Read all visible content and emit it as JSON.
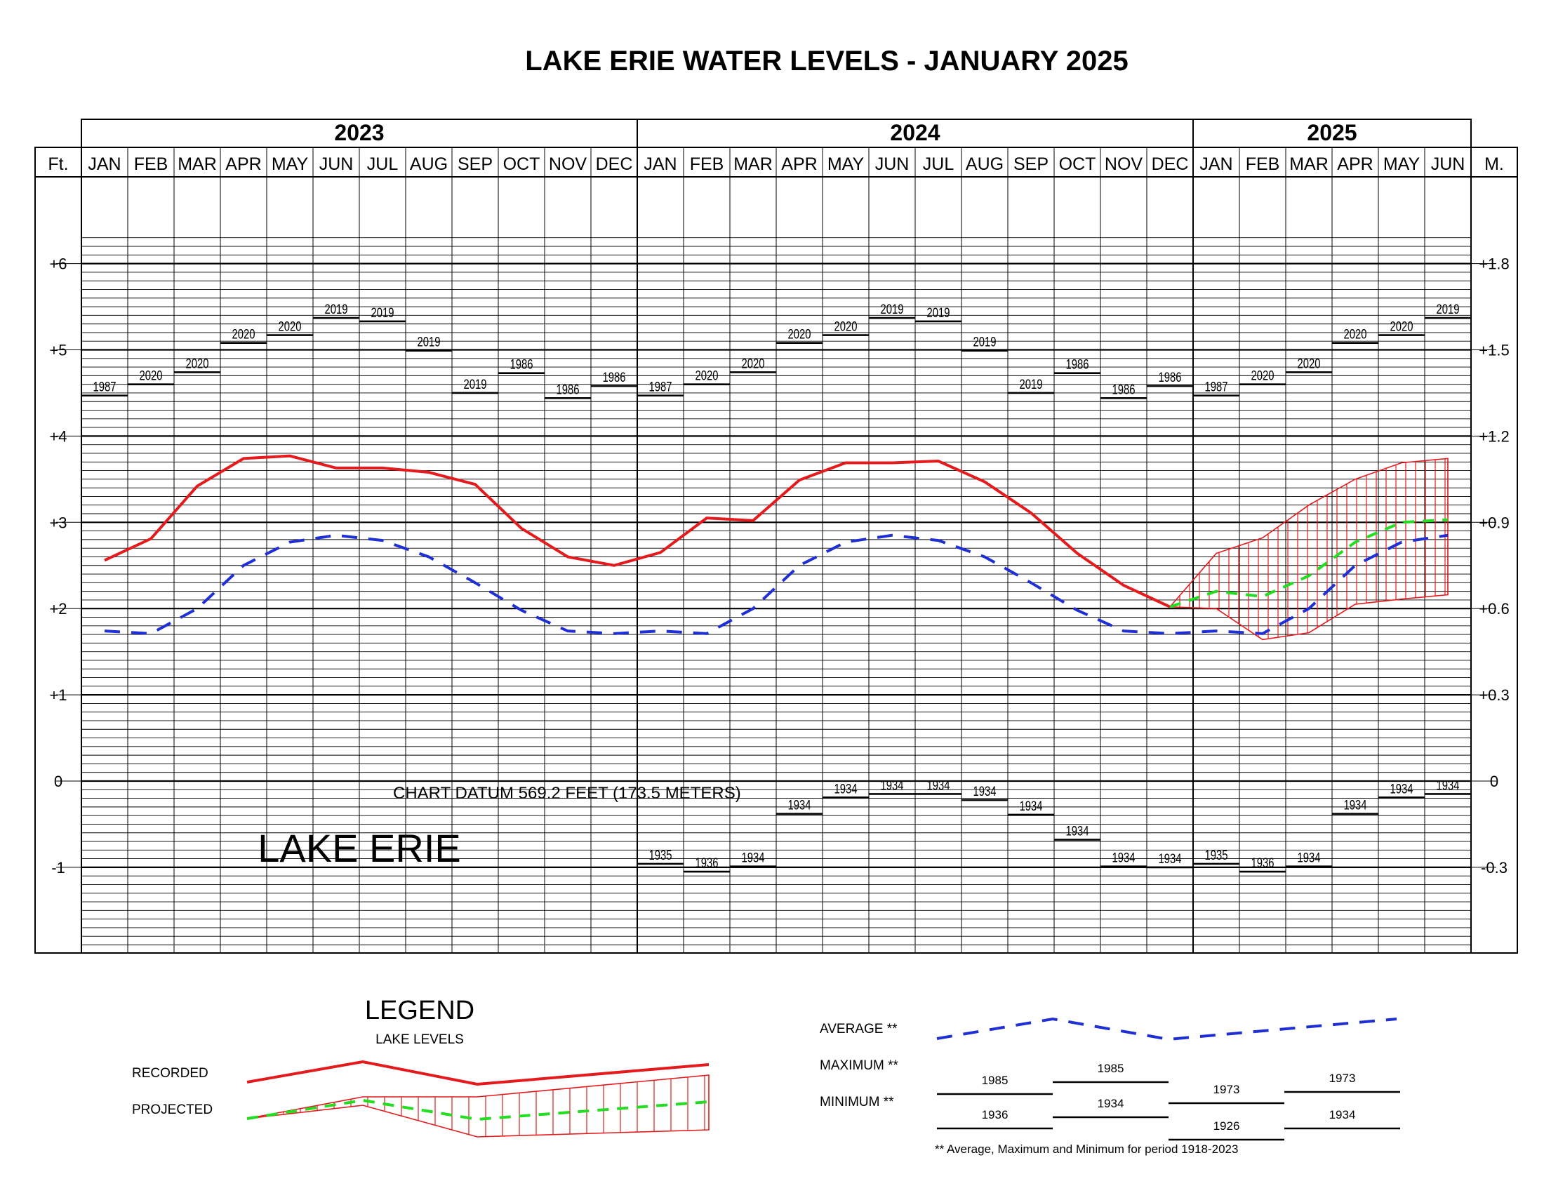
{
  "title": "LAKE ERIE WATER LEVELS - JANUARY 2025",
  "years": [
    {
      "label": "2023",
      "months": 12
    },
    {
      "label": "2024",
      "months": 12
    },
    {
      "label": "2025",
      "months": 6
    }
  ],
  "months": [
    "JAN",
    "FEB",
    "MAR",
    "APR",
    "MAY",
    "JUN",
    "JUL",
    "AUG",
    "SEP",
    "OCT",
    "NOV",
    "DEC",
    "JAN",
    "FEB",
    "MAR",
    "APR",
    "MAY",
    "JUN",
    "JUL",
    "AUG",
    "SEP",
    "OCT",
    "NOV",
    "DEC",
    "JAN",
    "FEB",
    "MAR",
    "APR",
    "MAY",
    "JUN"
  ],
  "axis_left_title": "Ft.",
  "axis_right_title": "M.",
  "feet_ticks": [
    {
      "v": 6,
      "label": "+6"
    },
    {
      "v": 5,
      "label": "+5"
    },
    {
      "v": 4,
      "label": "+4"
    },
    {
      "v": 3,
      "label": "+3"
    },
    {
      "v": 2,
      "label": "+2"
    },
    {
      "v": 1,
      "label": "+1"
    },
    {
      "v": 0,
      "label": "0"
    },
    {
      "v": -1,
      "label": "-1"
    }
  ],
  "meter_ticks": [
    {
      "v": 6,
      "label": "+1.8"
    },
    {
      "v": 5,
      "label": "+1.5"
    },
    {
      "v": 4,
      "label": "+1.2"
    },
    {
      "v": 3,
      "label": "+0.9"
    },
    {
      "v": 2,
      "label": "+0.6"
    },
    {
      "v": 1,
      "label": "+0.3"
    },
    {
      "v": 0,
      "label": "0"
    },
    {
      "v": -1,
      "label": "-0.3"
    }
  ],
  "datum_text": "CHART DATUM  569.2 FEET (173.5 METERS)",
  "lake_name": "LAKE ERIE",
  "colors": {
    "recorded": "#e41a1c",
    "projected": "#22dd22",
    "average": "#1f2fd6",
    "grid": "#000000"
  },
  "chart_data": {
    "type": "line",
    "x_unit": "month (Jan 2023 – Jun 2025)",
    "y_unit": "feet above chart datum",
    "ylim": [
      -2,
      7
    ],
    "grid": true,
    "x_categories": [
      "JAN",
      "FEB",
      "MAR",
      "APR",
      "MAY",
      "JUN",
      "JUL",
      "AUG",
      "SEP",
      "OCT",
      "NOV",
      "DEC",
      "JAN",
      "FEB",
      "MAR",
      "APR",
      "MAY",
      "JUN",
      "JUL",
      "AUG",
      "SEP",
      "OCT",
      "NOV",
      "DEC",
      "JAN",
      "FEB",
      "MAR",
      "APR",
      "MAY",
      "JUN"
    ],
    "recorded": [
      2.56,
      2.81,
      3.42,
      3.74,
      3.77,
      3.63,
      3.63,
      3.58,
      3.44,
      2.93,
      2.6,
      2.5,
      2.65,
      3.05,
      3.02,
      3.49,
      3.69,
      3.69,
      3.71,
      3.47,
      3.11,
      2.64,
      2.27,
      2.02
    ],
    "average": [
      1.74,
      1.71,
      2.0,
      2.5,
      2.77,
      2.85,
      2.79,
      2.6,
      2.3,
      1.98,
      1.74,
      1.71,
      1.74,
      1.71,
      2.0,
      2.5,
      2.77,
      2.85,
      2.79,
      2.6,
      2.3,
      1.98,
      1.74,
      1.71,
      1.74,
      1.71,
      2.0,
      2.5,
      2.77,
      2.85
    ],
    "projected": [
      2.2,
      2.14,
      2.38,
      2.77,
      3.0,
      3.03
    ],
    "projected_upper": [
      2.64,
      2.82,
      3.2,
      3.5,
      3.69,
      3.74
    ],
    "projected_lower": [
      2.0,
      1.64,
      1.72,
      2.05,
      2.11,
      2.16
    ],
    "maximum": [
      {
        "level": 4.47,
        "year": "1987"
      },
      {
        "level": 4.6,
        "year": "2020"
      },
      {
        "level": 4.74,
        "year": "2020"
      },
      {
        "level": 5.08,
        "year": "2020"
      },
      {
        "level": 5.17,
        "year": "2020"
      },
      {
        "level": 5.37,
        "year": "2019"
      },
      {
        "level": 5.33,
        "year": "2019"
      },
      {
        "level": 4.99,
        "year": "2019"
      },
      {
        "level": 4.5,
        "year": "2019"
      },
      {
        "level": 4.73,
        "year": "1986"
      },
      {
        "level": 4.44,
        "year": "1986"
      },
      {
        "level": 4.58,
        "year": "1986"
      }
    ],
    "minimum": [
      {
        "level": -0.96,
        "year": "1935"
      },
      {
        "level": -1.05,
        "year": "1936"
      },
      {
        "level": -0.99,
        "year": "1934"
      },
      {
        "level": -0.38,
        "year": "1934"
      },
      {
        "level": -0.19,
        "year": "1934"
      },
      {
        "level": -0.15,
        "year": "1934"
      },
      {
        "level": -0.15,
        "year": "1934"
      },
      {
        "level": -0.22,
        "year": "1934"
      },
      {
        "level": -0.39,
        "year": "1934"
      },
      {
        "level": -0.68,
        "year": "1934"
      },
      {
        "level": -0.99,
        "year": "1934"
      },
      {
        "level": -1.0,
        "year": "1934"
      }
    ],
    "min_visible_months_2024": [
      true,
      true,
      true,
      true,
      true,
      true,
      true,
      true,
      true,
      true,
      true,
      true
    ],
    "min_visible_months_2025": [
      true,
      true,
      true,
      true,
      true,
      true
    ]
  },
  "legend": {
    "title": "LEGEND",
    "subtitle": "LAKE LEVELS",
    "recorded_label": "RECORDED",
    "projected_label": "PROJECTED",
    "average_label": "AVERAGE **",
    "maximum_label": "MAXIMUM **",
    "minimum_label": "MINIMUM **",
    "max_years": [
      "1985",
      "1985",
      "1973",
      "1973"
    ],
    "min_years": [
      "1936",
      "1934",
      "1926",
      "1934"
    ],
    "footnote": "** Average, Maximum and Minimum for period 1918-2023"
  }
}
